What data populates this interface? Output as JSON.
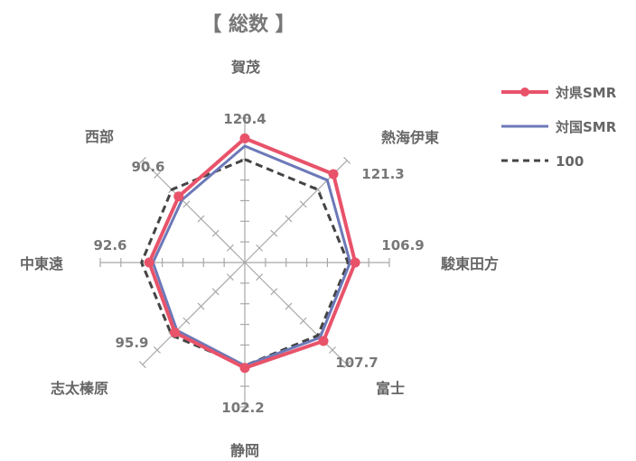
{
  "chart_data": {
    "type": "radar",
    "title": "【 総数 】",
    "categories": [
      "賀茂",
      "熱海伊東",
      "駿東田方",
      "富士",
      "静岡",
      "志太榛原",
      "中東遠",
      "西部"
    ],
    "series": [
      {
        "name": "対県SMR",
        "color": "#e8536a",
        "values": [
          120.4,
          121.3,
          106.9,
          107.7,
          102.2,
          95.9,
          92.6,
          90.6
        ]
      },
      {
        "name": "対国SMR",
        "color": "#6c79b8",
        "values": [
          113,
          113,
          102,
          103,
          100,
          93,
          89,
          86
        ]
      },
      {
        "name": "100",
        "color": "#444444",
        "values": [
          100,
          100,
          100,
          100,
          100,
          100,
          100,
          100
        ]
      }
    ],
    "data_labels": [
      "120.4",
      "121.3",
      "106.9",
      "107.7",
      "102.2",
      "95.9",
      "92.6",
      "90.6"
    ],
    "r_range": [
      0,
      140
    ],
    "grid": true,
    "legend": "right"
  }
}
